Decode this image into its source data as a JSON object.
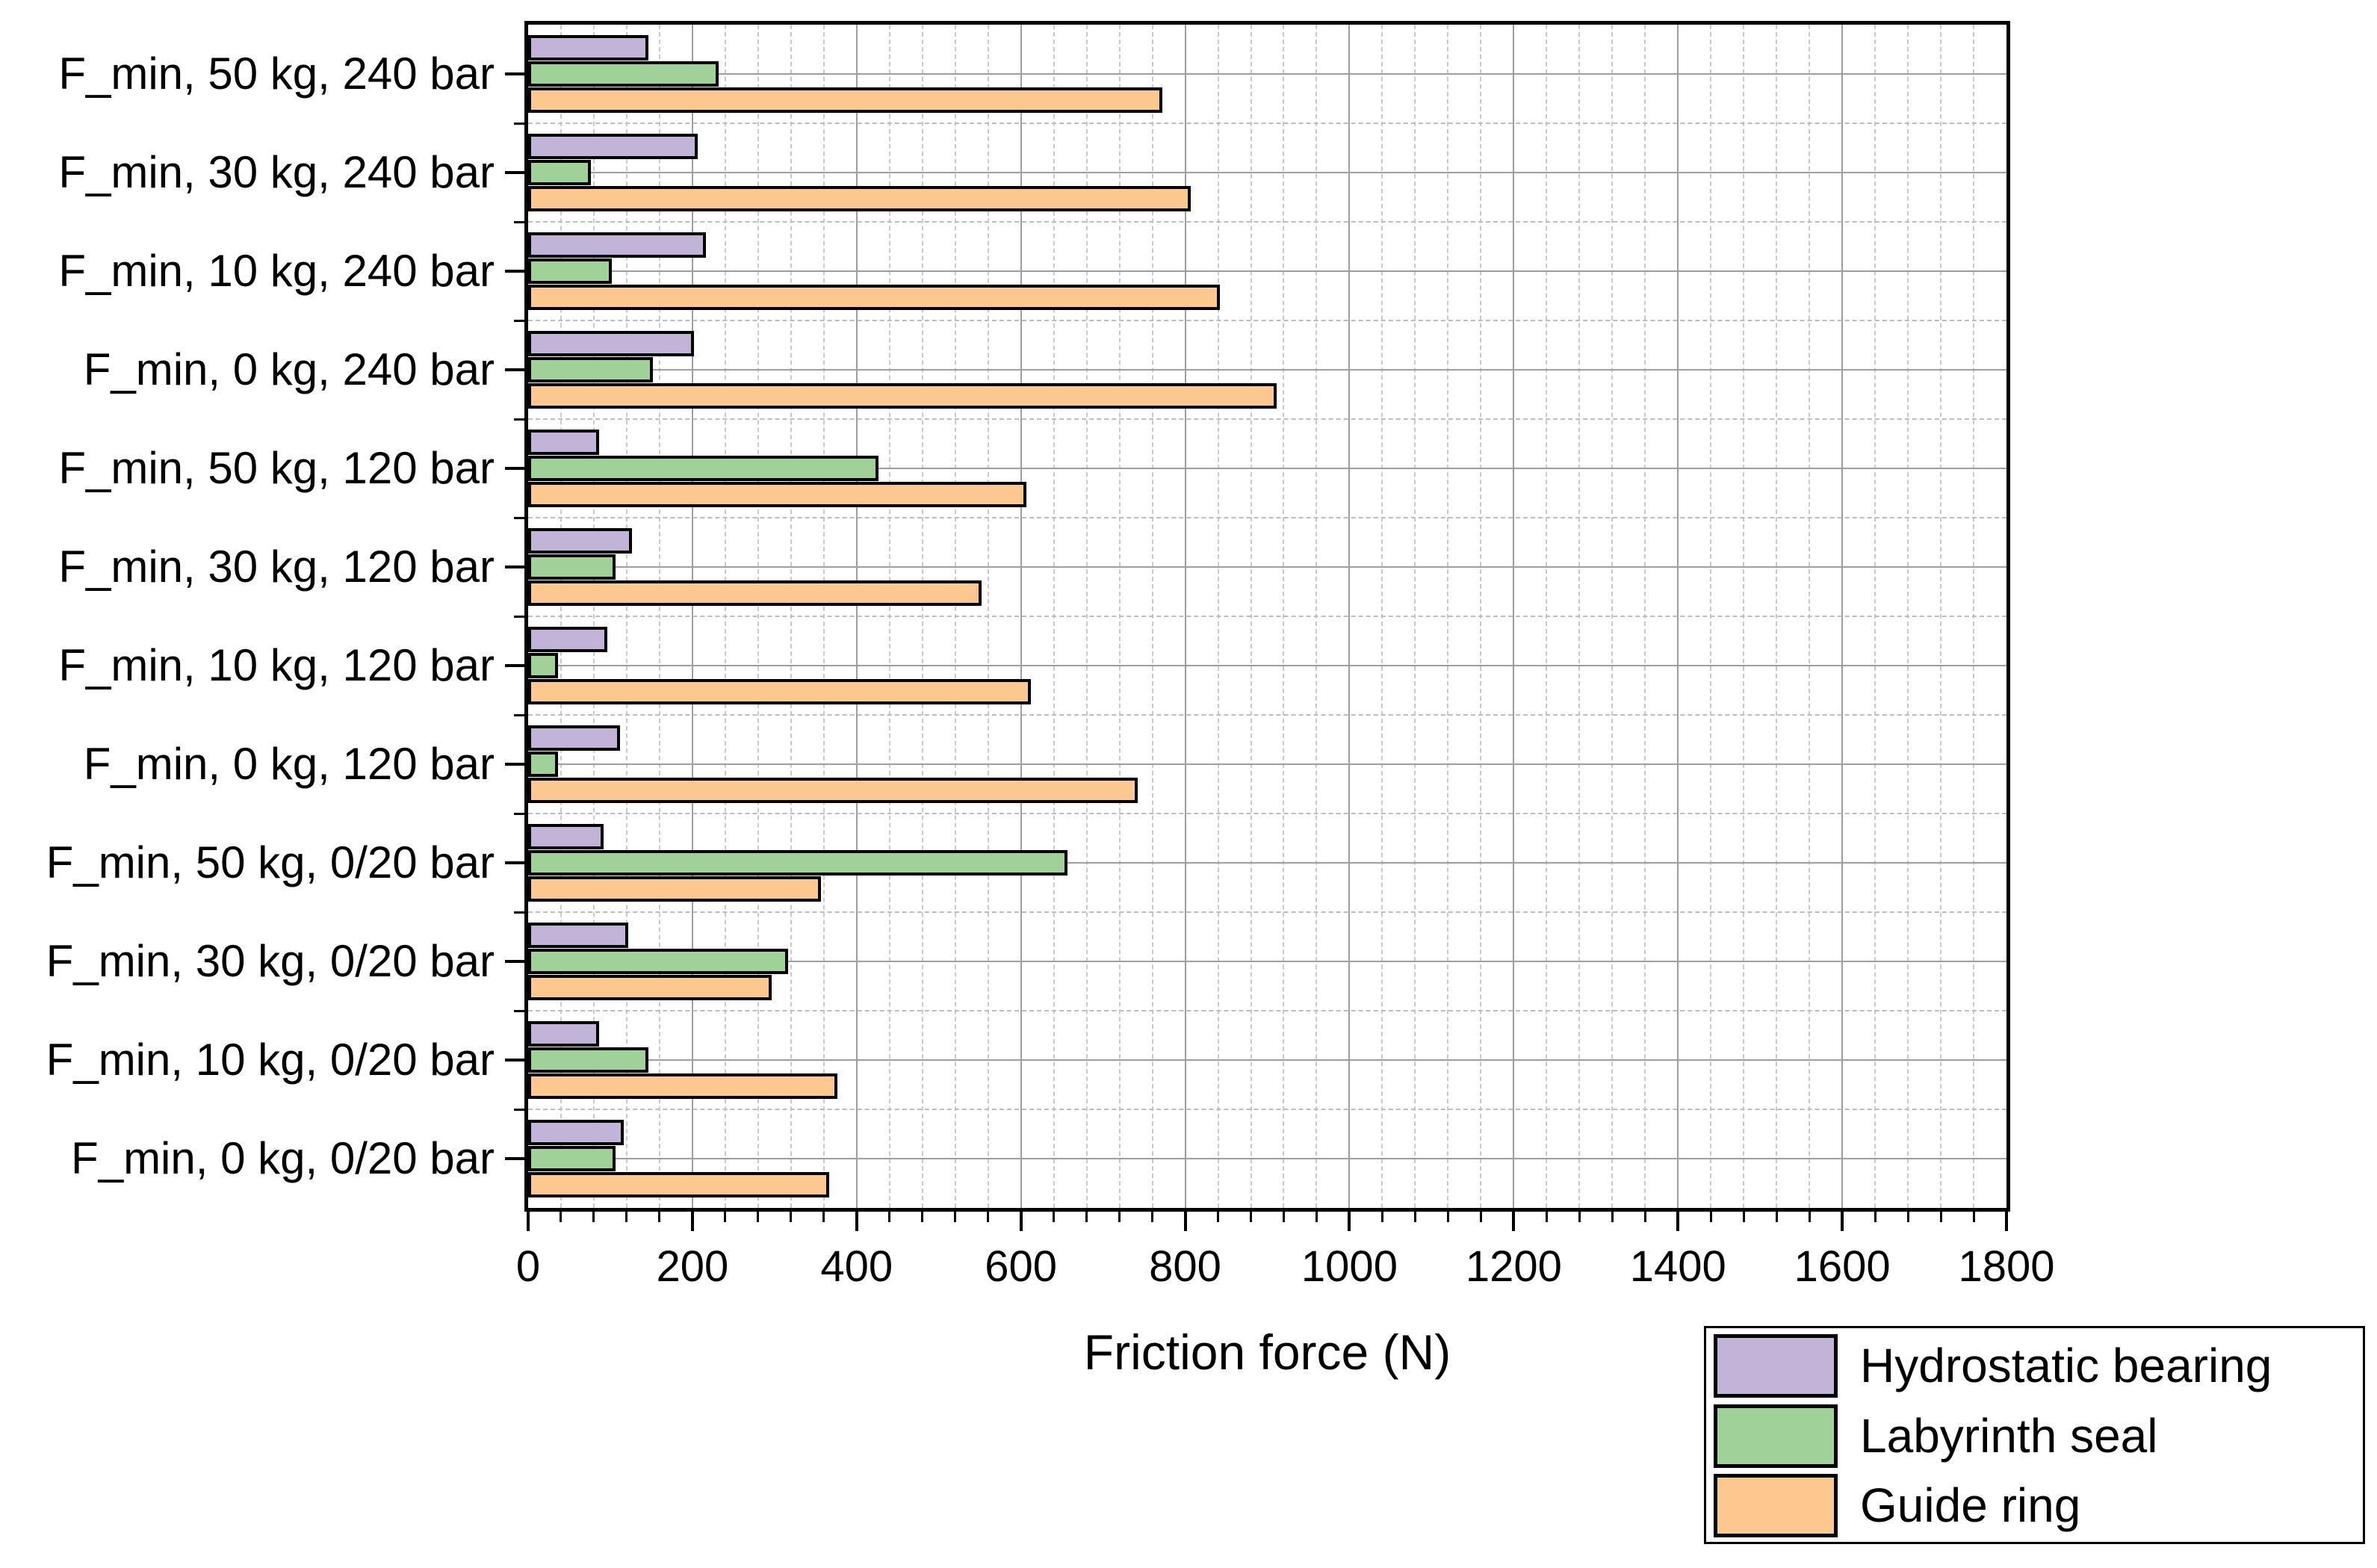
{
  "figure": {
    "background": "#ffffff"
  },
  "chart_data": {
    "type": "bar",
    "orientation": "horizontal",
    "title": "",
    "xlabel": "Friction force (N)",
    "ylabel": "",
    "xlim": [
      0,
      1800
    ],
    "x_major_tick_step": 200,
    "x_minor_tick_step": 40,
    "x_tick_labels": [
      "0",
      "200",
      "400",
      "600",
      "800",
      "1000",
      "1200",
      "1400",
      "1600",
      "1800"
    ],
    "grid": {
      "vertical_major": "solid",
      "vertical_minor": "dashed",
      "horizontal_major": "solid",
      "horizontal_minor": "dashed",
      "major_color": "#9e9e9e",
      "minor_color": "#c9c9c9"
    },
    "categories": [
      "F_min, 50 kg, 240 bar",
      "F_min, 30 kg, 240 bar",
      "F_min, 10 kg, 240 bar",
      "F_min, 0 kg, 240 bar",
      "F_min, 50 kg, 120 bar",
      "F_min, 30 kg, 120 bar",
      "F_min, 10 kg, 120 bar",
      "F_min, 0 kg, 120 bar",
      "F_min, 50 kg, 0/20 bar",
      "F_min, 30 kg, 0/20 bar",
      "F_min, 10 kg, 0/20 bar",
      "F_min, 0 kg, 0/20 bar"
    ],
    "series": [
      {
        "name": "Hydrostatic bearing",
        "color": "#c2b3d9",
        "values": [
          145,
          205,
          215,
          200,
          85,
          125,
          95,
          110,
          90,
          120,
          85,
          115
        ]
      },
      {
        "name": "Labyrinth seal",
        "color": "#9fd199",
        "values": [
          230,
          75,
          100,
          150,
          425,
          105,
          35,
          35,
          655,
          315,
          145,
          105
        ]
      },
      {
        "name": "Guide ring",
        "color": "#fdc890",
        "values": [
          770,
          805,
          840,
          910,
          605,
          550,
          610,
          740,
          355,
          295,
          375,
          365
        ]
      }
    ],
    "bar_border_color": "#000000",
    "legend_position": "bottom-right"
  }
}
